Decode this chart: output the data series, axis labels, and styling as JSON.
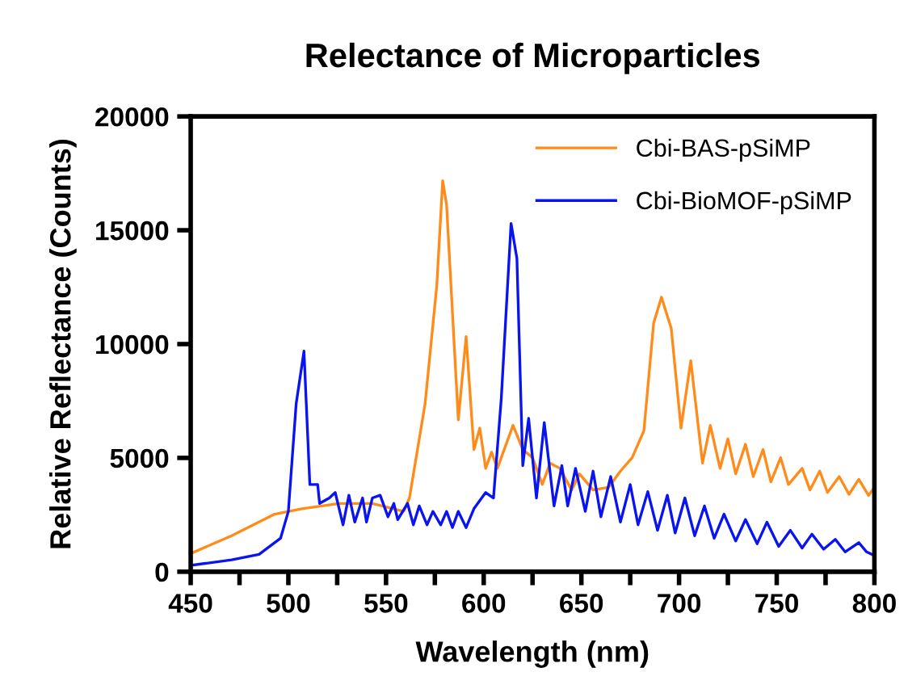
{
  "chart_data": {
    "type": "line",
    "title": "Relectance of Microparticles",
    "xlabel": "Wavelength (nm)",
    "ylabel": "Relative Reflectance (Counts)",
    "xlim": [
      450,
      800
    ],
    "ylim": [
      0,
      20000
    ],
    "xticks": [
      450,
      {
        "value": 475,
        "label": null
      },
      500,
      {
        "value": 525,
        "label": null
      },
      550,
      {
        "value": 575,
        "label": null
      },
      600,
      {
        "value": 625,
        "label": null
      },
      650,
      {
        "value": 675,
        "label": null
      },
      700,
      {
        "value": 725,
        "label": null
      },
      750,
      {
        "value": 775,
        "label": null
      },
      800
    ],
    "yticks": [
      0,
      5000,
      10000,
      15000,
      20000
    ],
    "grid": false,
    "legend": "top right",
    "marker": "none",
    "line_style": "solid",
    "series": [
      {
        "name": "Cbi-BAS-pSiMP",
        "color": "#ff8c1a",
        "x": [
          450,
          471,
          493,
          507,
          526,
          543,
          559,
          562,
          570,
          576,
          579,
          581,
          587,
          591,
          595,
          598,
          601,
          604,
          607,
          610,
          615,
          620,
          625,
          630,
          634,
          639,
          645,
          649,
          656,
          664,
          670,
          676,
          682,
          687,
          691,
          696,
          701,
          706,
          712,
          716,
          721,
          725,
          729,
          734,
          738,
          743,
          747,
          752,
          756,
          763,
          767,
          772,
          776,
          782,
          787,
          792,
          797,
          800
        ],
        "values": [
          800,
          1580,
          2530,
          2770,
          3000,
          3000,
          2650,
          3240,
          7380,
          12580,
          17180,
          16120,
          6670,
          10330,
          5370,
          6310,
          4540,
          5250,
          4540,
          5250,
          6430,
          5370,
          5010,
          3830,
          4770,
          4540,
          3590,
          4300,
          3590,
          3710,
          4420,
          5010,
          6190,
          10920,
          12060,
          10690,
          6310,
          9270,
          4770,
          6430,
          4540,
          5840,
          4300,
          5600,
          4180,
          5370,
          3950,
          5010,
          3830,
          4540,
          3590,
          4420,
          3480,
          4180,
          3400,
          4060,
          3350,
          3710
        ]
      },
      {
        "name": "Cbi-BioMOF-pSiMP",
        "color": "#0a14f0",
        "x": [
          450,
          471,
          485,
          496,
          500,
          504,
          508,
          511,
          515,
          516,
          521,
          524,
          528,
          531,
          534,
          538,
          540,
          543,
          547,
          551,
          554,
          556,
          561,
          564,
          567,
          571,
          574,
          578,
          581,
          584,
          587,
          591,
          595,
          601,
          605,
          609,
          614,
          617,
          620,
          623,
          627,
          631,
          636,
          640,
          643,
          647,
          652,
          656,
          660,
          665,
          670,
          675,
          679,
          684,
          689,
          694,
          698,
          703,
          708,
          713,
          718,
          723,
          729,
          734,
          740,
          745,
          751,
          757,
          763,
          768,
          774,
          780,
          785,
          792,
          796,
          800
        ],
        "values": [
          280,
          520,
          760,
          1470,
          2650,
          7380,
          9690,
          3830,
          3830,
          3000,
          3240,
          3480,
          2060,
          3360,
          2180,
          3240,
          2180,
          3240,
          3360,
          2410,
          3000,
          2290,
          3000,
          2060,
          2890,
          2060,
          2650,
          2060,
          2650,
          1940,
          2650,
          1940,
          2770,
          3480,
          3240,
          7610,
          15300,
          13760,
          4660,
          6740,
          3240,
          6550,
          2890,
          4660,
          2890,
          4540,
          2650,
          4420,
          2410,
          4180,
          2180,
          3830,
          2060,
          3520,
          1820,
          3360,
          1700,
          3240,
          1580,
          2890,
          1470,
          2530,
          1350,
          2290,
          1230,
          2180,
          1110,
          1820,
          1040,
          1650,
          990,
          1420,
          870,
          1280,
          870,
          710
        ]
      }
    ]
  }
}
